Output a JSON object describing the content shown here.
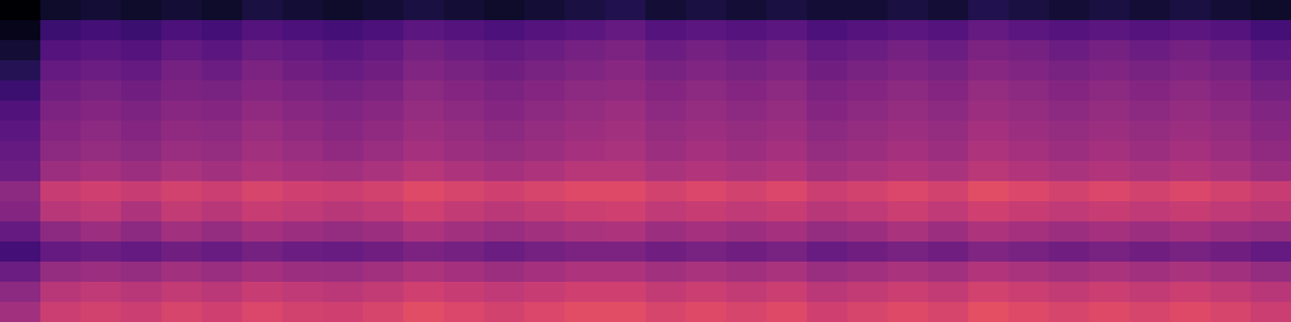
{
  "chart_data": {
    "type": "heatmap",
    "tick_labels": false,
    "zlim": [
      0,
      1
    ],
    "cells": [
      [
        0.0,
        0.08,
        0.1,
        0.08,
        0.1,
        0.08,
        0.12,
        0.1,
        0.08,
        0.1,
        0.12,
        0.1,
        0.08,
        0.1,
        0.12,
        0.14,
        0.1,
        0.12,
        0.1,
        0.12,
        0.1,
        0.1,
        0.12,
        0.1,
        0.14,
        0.12,
        0.1,
        0.12,
        0.1,
        0.12,
        0.1,
        0.08
      ],
      [
        0.05,
        0.2,
        0.22,
        0.2,
        0.24,
        0.22,
        0.26,
        0.24,
        0.22,
        0.24,
        0.28,
        0.26,
        0.24,
        0.26,
        0.28,
        0.3,
        0.26,
        0.28,
        0.26,
        0.28,
        0.24,
        0.26,
        0.28,
        0.26,
        0.3,
        0.28,
        0.26,
        0.28,
        0.26,
        0.28,
        0.26,
        0.22
      ],
      [
        0.1,
        0.26,
        0.28,
        0.26,
        0.3,
        0.28,
        0.32,
        0.3,
        0.28,
        0.3,
        0.34,
        0.32,
        0.3,
        0.32,
        0.34,
        0.36,
        0.32,
        0.34,
        0.32,
        0.34,
        0.3,
        0.32,
        0.34,
        0.32,
        0.36,
        0.34,
        0.32,
        0.34,
        0.32,
        0.34,
        0.32,
        0.28
      ],
      [
        0.15,
        0.3,
        0.32,
        0.3,
        0.34,
        0.32,
        0.36,
        0.33,
        0.31,
        0.33,
        0.37,
        0.35,
        0.33,
        0.35,
        0.37,
        0.39,
        0.35,
        0.37,
        0.35,
        0.37,
        0.33,
        0.35,
        0.37,
        0.35,
        0.39,
        0.37,
        0.35,
        0.37,
        0.35,
        0.37,
        0.35,
        0.31
      ],
      [
        0.2,
        0.33,
        0.35,
        0.33,
        0.36,
        0.35,
        0.38,
        0.36,
        0.34,
        0.36,
        0.4,
        0.38,
        0.36,
        0.38,
        0.4,
        0.41,
        0.38,
        0.4,
        0.38,
        0.4,
        0.36,
        0.38,
        0.4,
        0.38,
        0.42,
        0.4,
        0.38,
        0.4,
        0.38,
        0.4,
        0.38,
        0.34
      ],
      [
        0.25,
        0.36,
        0.38,
        0.36,
        0.39,
        0.38,
        0.41,
        0.39,
        0.37,
        0.39,
        0.42,
        0.4,
        0.38,
        0.4,
        0.42,
        0.44,
        0.4,
        0.42,
        0.4,
        0.42,
        0.38,
        0.4,
        0.42,
        0.4,
        0.44,
        0.42,
        0.4,
        0.42,
        0.4,
        0.42,
        0.4,
        0.37
      ],
      [
        0.28,
        0.38,
        0.4,
        0.38,
        0.41,
        0.4,
        0.43,
        0.41,
        0.39,
        0.41,
        0.44,
        0.42,
        0.4,
        0.42,
        0.44,
        0.45,
        0.42,
        0.44,
        0.42,
        0.44,
        0.4,
        0.42,
        0.44,
        0.42,
        0.46,
        0.44,
        0.42,
        0.44,
        0.42,
        0.44,
        0.42,
        0.39
      ],
      [
        0.3,
        0.4,
        0.42,
        0.4,
        0.43,
        0.42,
        0.45,
        0.43,
        0.41,
        0.43,
        0.46,
        0.44,
        0.42,
        0.44,
        0.46,
        0.47,
        0.44,
        0.46,
        0.44,
        0.46,
        0.42,
        0.44,
        0.46,
        0.44,
        0.48,
        0.46,
        0.44,
        0.46,
        0.44,
        0.46,
        0.44,
        0.41
      ],
      [
        0.32,
        0.44,
        0.46,
        0.44,
        0.47,
        0.45,
        0.48,
        0.46,
        0.45,
        0.47,
        0.5,
        0.48,
        0.46,
        0.48,
        0.5,
        0.5,
        0.47,
        0.49,
        0.47,
        0.49,
        0.45,
        0.47,
        0.49,
        0.47,
        0.51,
        0.49,
        0.47,
        0.49,
        0.47,
        0.49,
        0.47,
        0.44
      ],
      [
        0.4,
        0.54,
        0.56,
        0.54,
        0.57,
        0.55,
        0.58,
        0.56,
        0.55,
        0.57,
        0.6,
        0.58,
        0.56,
        0.58,
        0.6,
        0.6,
        0.57,
        0.59,
        0.57,
        0.59,
        0.55,
        0.57,
        0.59,
        0.57,
        0.61,
        0.59,
        0.57,
        0.59,
        0.57,
        0.59,
        0.57,
        0.54
      ],
      [
        0.38,
        0.5,
        0.52,
        0.48,
        0.53,
        0.5,
        0.54,
        0.52,
        0.5,
        0.52,
        0.56,
        0.53,
        0.51,
        0.53,
        0.55,
        0.56,
        0.52,
        0.54,
        0.52,
        0.54,
        0.5,
        0.52,
        0.55,
        0.52,
        0.56,
        0.54,
        0.52,
        0.54,
        0.52,
        0.54,
        0.52,
        0.5
      ],
      [
        0.3,
        0.4,
        0.44,
        0.4,
        0.45,
        0.42,
        0.46,
        0.44,
        0.42,
        0.44,
        0.48,
        0.45,
        0.43,
        0.45,
        0.47,
        0.48,
        0.44,
        0.46,
        0.44,
        0.46,
        0.42,
        0.44,
        0.47,
        0.44,
        0.48,
        0.46,
        0.44,
        0.46,
        0.44,
        0.46,
        0.44,
        0.42
      ],
      [
        0.22,
        0.3,
        0.32,
        0.3,
        0.33,
        0.31,
        0.34,
        0.32,
        0.31,
        0.33,
        0.36,
        0.34,
        0.32,
        0.34,
        0.36,
        0.36,
        0.33,
        0.35,
        0.33,
        0.35,
        0.31,
        0.33,
        0.35,
        0.33,
        0.37,
        0.35,
        0.33,
        0.35,
        0.33,
        0.35,
        0.33,
        0.3
      ],
      [
        0.32,
        0.42,
        0.44,
        0.42,
        0.45,
        0.43,
        0.46,
        0.44,
        0.43,
        0.45,
        0.48,
        0.46,
        0.44,
        0.46,
        0.48,
        0.48,
        0.45,
        0.47,
        0.45,
        0.47,
        0.43,
        0.45,
        0.47,
        0.45,
        0.49,
        0.47,
        0.45,
        0.47,
        0.45,
        0.47,
        0.45,
        0.42
      ],
      [
        0.4,
        0.5,
        0.52,
        0.5,
        0.53,
        0.51,
        0.54,
        0.52,
        0.51,
        0.53,
        0.56,
        0.54,
        0.52,
        0.54,
        0.56,
        0.56,
        0.53,
        0.55,
        0.53,
        0.55,
        0.51,
        0.53,
        0.55,
        0.53,
        0.57,
        0.55,
        0.53,
        0.55,
        0.53,
        0.55,
        0.53,
        0.5
      ],
      [
        0.45,
        0.55,
        0.57,
        0.55,
        0.58,
        0.56,
        0.59,
        0.57,
        0.56,
        0.58,
        0.61,
        0.59,
        0.57,
        0.59,
        0.61,
        0.61,
        0.58,
        0.6,
        0.58,
        0.6,
        0.56,
        0.58,
        0.6,
        0.58,
        0.62,
        0.6,
        0.58,
        0.6,
        0.58,
        0.6,
        0.58,
        0.55
      ]
    ]
  }
}
